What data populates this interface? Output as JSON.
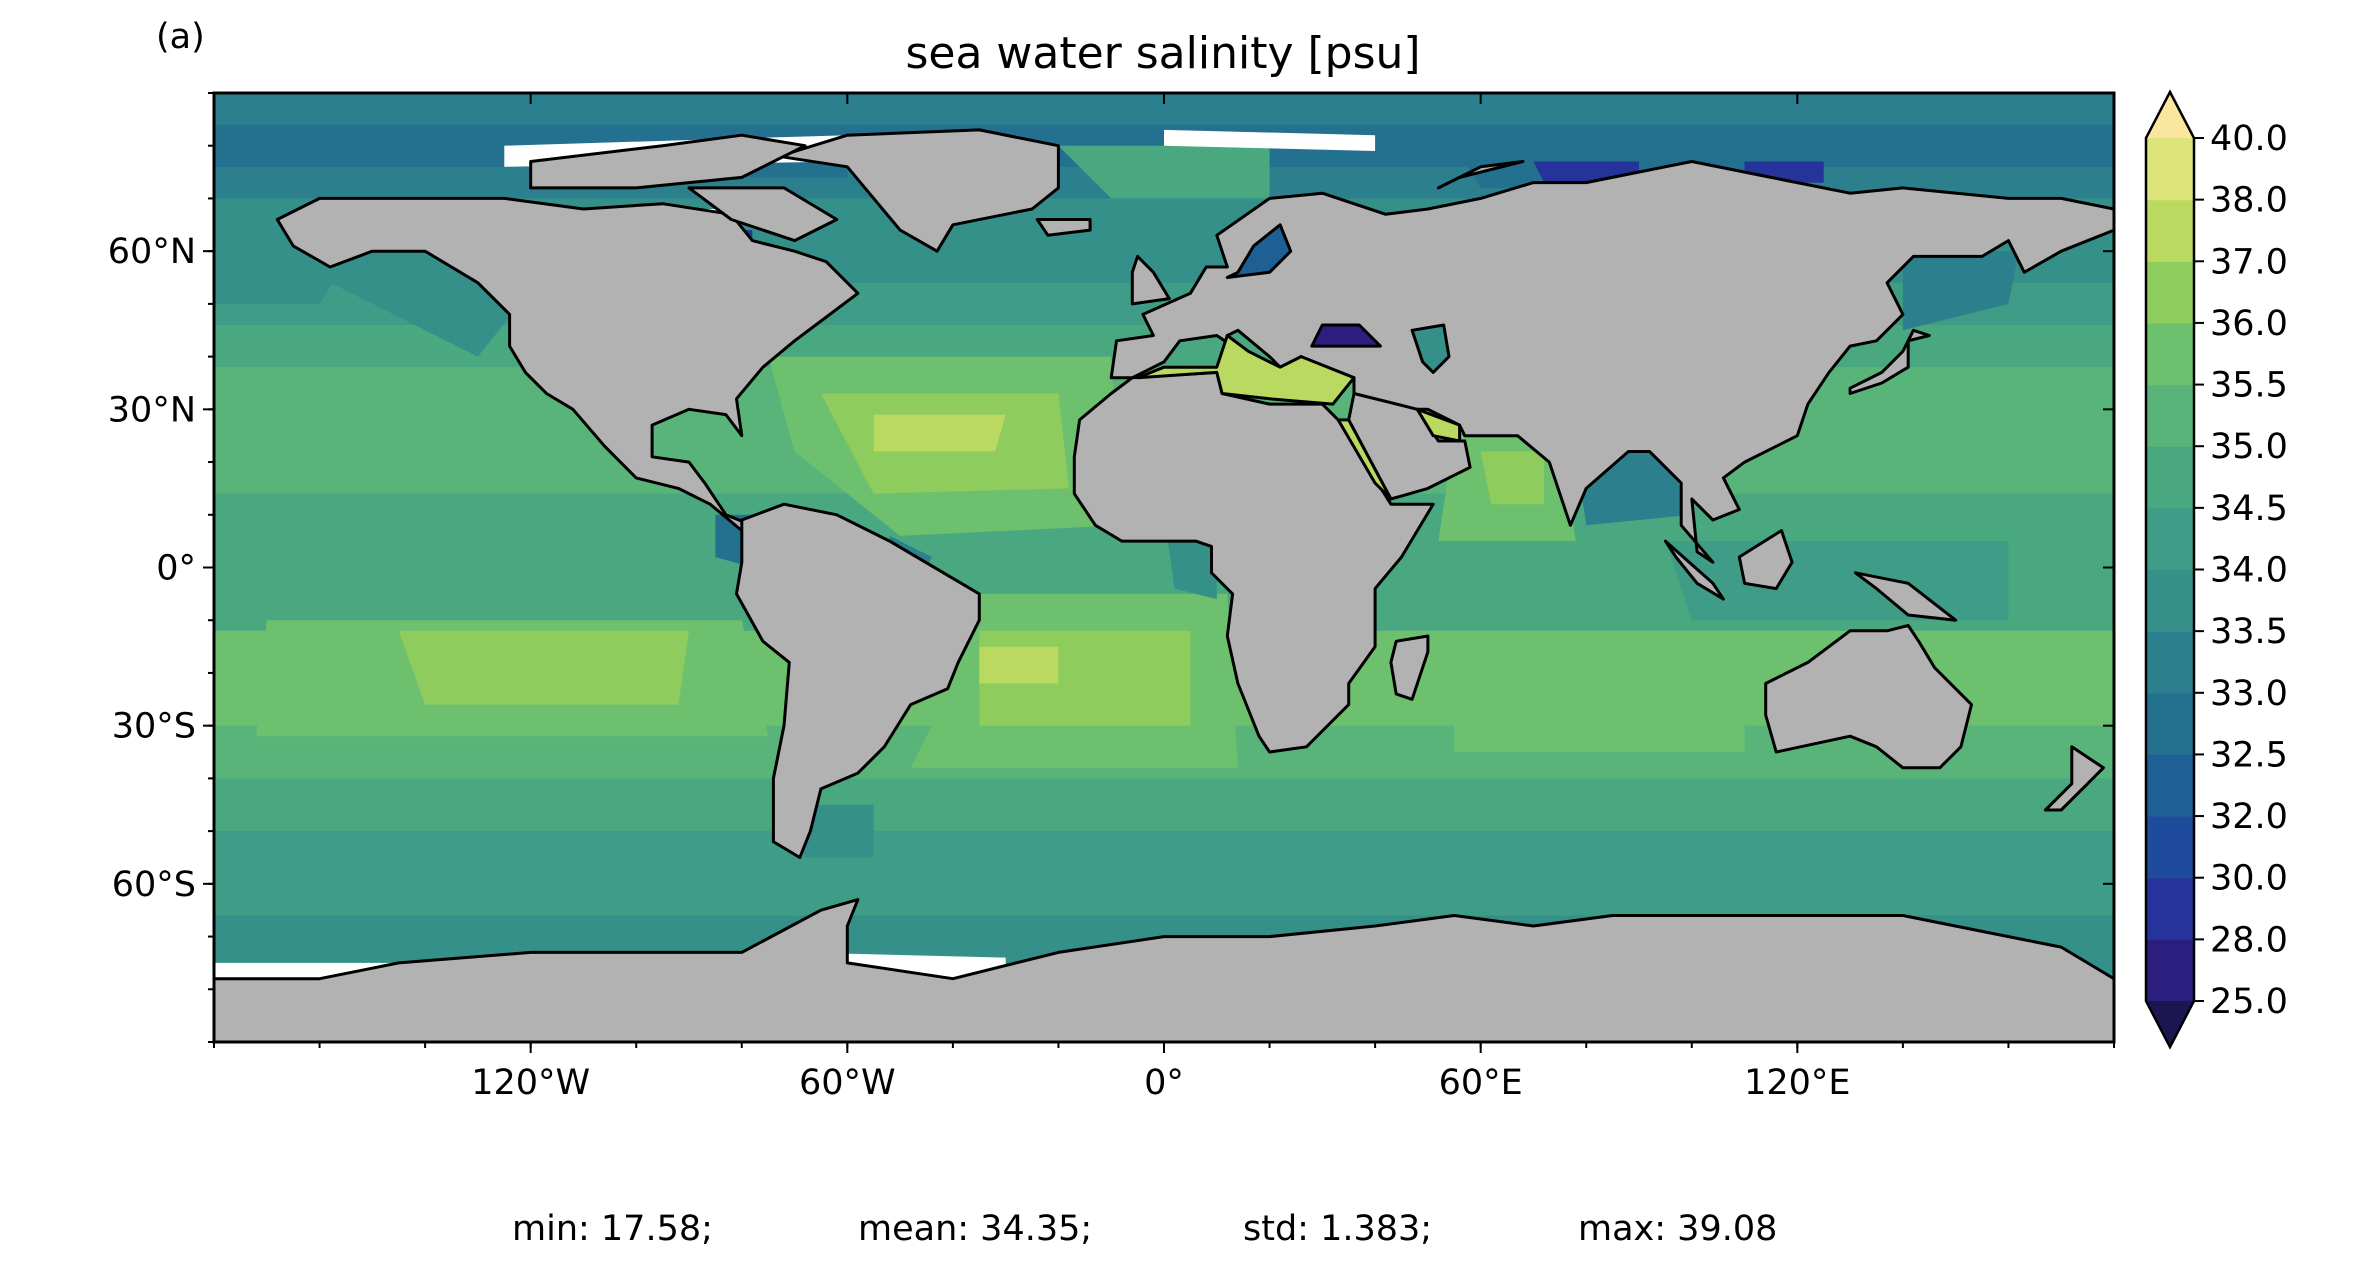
{
  "panel_label": "(a)",
  "title": "sea water salinity [psu]",
  "map": {
    "projection": "PlateCarree",
    "lon_range": [
      -180,
      180
    ],
    "lat_range": [
      -90,
      90
    ],
    "land_color": "#b2b2b2",
    "coastline_color": "#000000",
    "lon_ticks": [
      {
        "value": -120,
        "label": "120°W"
      },
      {
        "value": -60,
        "label": "60°W"
      },
      {
        "value": 0,
        "label": "0°"
      },
      {
        "value": 60,
        "label": "60°E"
      },
      {
        "value": 120,
        "label": "120°E"
      }
    ],
    "lat_ticks": [
      {
        "value": 60,
        "label": "60°N"
      },
      {
        "value": 30,
        "label": "30°N"
      },
      {
        "value": 0,
        "label": "0°"
      },
      {
        "value": -30,
        "label": "30°S"
      },
      {
        "value": -60,
        "label": "60°S"
      }
    ]
  },
  "colorbar": {
    "levels": [
      "25.0",
      "28.0",
      "30.0",
      "32.0",
      "32.5",
      "33.0",
      "33.5",
      "34.0",
      "34.5",
      "35.0",
      "35.5",
      "36.0",
      "37.0",
      "38.0",
      "40.0"
    ],
    "colors": [
      "#2c1e7e",
      "#26339a",
      "#1f4b9c",
      "#1e5f94",
      "#24708f",
      "#2c7f8d",
      "#35908a",
      "#3f9c86",
      "#4aa881",
      "#58b479",
      "#6dc06d",
      "#8fcc5e",
      "#b9d960",
      "#dde57a"
    ],
    "extend_low_color": "#1b1651",
    "extend_high_color": "#fbe6a0"
  },
  "stats": {
    "min": "min: 17.58;",
    "mean": "mean: 34.35;",
    "std": "std: 1.383;",
    "max": "max: 39.08"
  }
}
